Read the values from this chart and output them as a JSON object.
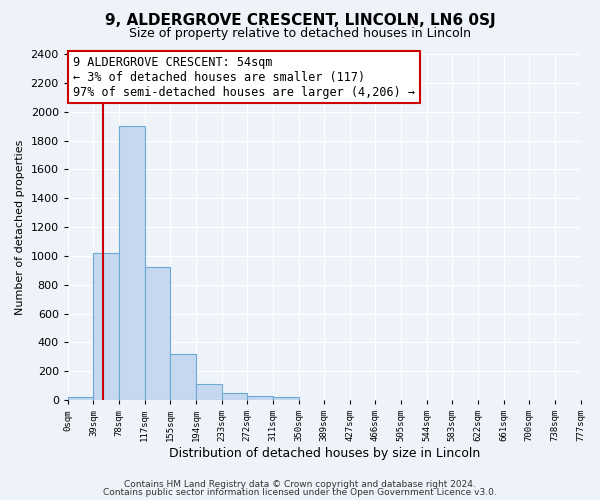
{
  "title": "9, ALDERGROVE CRESCENT, LINCOLN, LN6 0SJ",
  "subtitle": "Size of property relative to detached houses in Lincoln",
  "xlabel": "Distribution of detached houses by size in Lincoln",
  "ylabel": "Number of detached properties",
  "bin_labels": [
    "0sqm",
    "39sqm",
    "78sqm",
    "117sqm",
    "155sqm",
    "194sqm",
    "233sqm",
    "272sqm",
    "311sqm",
    "350sqm",
    "389sqm",
    "427sqm",
    "466sqm",
    "505sqm",
    "544sqm",
    "583sqm",
    "622sqm",
    "661sqm",
    "700sqm",
    "738sqm",
    "777sqm"
  ],
  "bar_values": [
    25,
    1020,
    1900,
    920,
    320,
    110,
    50,
    30,
    25,
    0,
    0,
    0,
    0,
    0,
    0,
    0,
    0,
    0,
    0,
    0
  ],
  "bar_color": "#c5d8f0",
  "bar_edge_color": "#6aaad4",
  "vline_x": 1.385,
  "vline_color": "#cc0000",
  "annotation_title": "9 ALDERGROVE CRESCENT: 54sqm",
  "annotation_line1": "← 3% of detached houses are smaller (117)",
  "annotation_line2": "97% of semi-detached houses are larger (4,206) →",
  "annotation_box_color": "#ffffff",
  "annotation_box_edge": "#cc0000",
  "ylim": [
    0,
    2400
  ],
  "yticks": [
    0,
    200,
    400,
    600,
    800,
    1000,
    1200,
    1400,
    1600,
    1800,
    2000,
    2200,
    2400
  ],
  "background_color": "#eef2f9",
  "grid_color": "#ffffff",
  "footer1": "Contains HM Land Registry data © Crown copyright and database right 2024.",
  "footer2": "Contains public sector information licensed under the Open Government Licence v3.0."
}
